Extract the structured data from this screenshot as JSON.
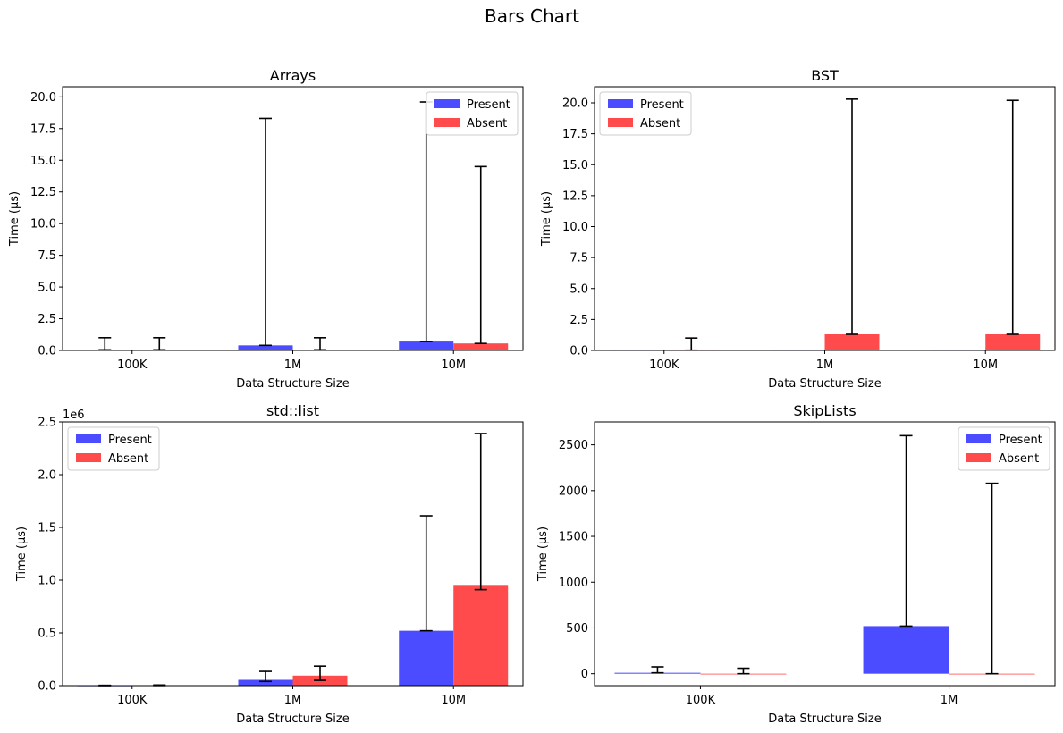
{
  "title": "Bars Chart",
  "colors": {
    "present": "#4b4bff",
    "absent": "#ff4b4b",
    "error": "#000000"
  },
  "chart_data": [
    {
      "type": "bar",
      "title": "Arrays",
      "xlabel": "Data Structure Size",
      "ylabel": "Time (µs)",
      "categories": [
        "100K",
        "1M",
        "10M"
      ],
      "ylim": [
        0,
        20.8
      ],
      "yticks": [
        "0.0",
        "2.5",
        "5.0",
        "7.5",
        "10.0",
        "12.5",
        "15.0",
        "17.5",
        "20.0"
      ],
      "ytick_values": [
        0,
        2.5,
        5,
        7.5,
        10,
        12.5,
        15,
        17.5,
        20
      ],
      "y_offset_label": "",
      "legend": "top-right",
      "series": [
        {
          "name": "Present",
          "values": [
            0.05,
            0.4,
            0.7
          ],
          "err_low": [
            0.05,
            0.4,
            0.7
          ],
          "err_high": [
            1.0,
            18.3,
            19.6
          ]
        },
        {
          "name": "Absent",
          "values": [
            0.05,
            0.05,
            0.55
          ],
          "err_low": [
            0.05,
            0.05,
            0.55
          ],
          "err_high": [
            1.0,
            1.0,
            14.5
          ]
        }
      ]
    },
    {
      "type": "bar",
      "title": "BST",
      "xlabel": "Data Structure Size",
      "ylabel": "Time (µs)",
      "categories": [
        "100K",
        "1M",
        "10M"
      ],
      "ylim": [
        0,
        21.3
      ],
      "yticks": [
        "0.0",
        "2.5",
        "5.0",
        "7.5",
        "10.0",
        "12.5",
        "15.0",
        "17.5",
        "20.0"
      ],
      "ytick_values": [
        0,
        2.5,
        5,
        7.5,
        10,
        12.5,
        15,
        17.5,
        20
      ],
      "y_offset_label": "",
      "legend": "top-left",
      "series": [
        {
          "name": "Present",
          "values": [
            0.02,
            0.02,
            0.02
          ],
          "err_low": null,
          "err_high": null
        },
        {
          "name": "Absent",
          "values": [
            0.02,
            1.3,
            1.3
          ],
          "err_low": [
            0.02,
            1.3,
            1.3
          ],
          "err_high": [
            1.0,
            20.3,
            20.2
          ]
        }
      ]
    },
    {
      "type": "bar",
      "title": "std::list",
      "xlabel": "Data Structure Size",
      "ylabel": "Time (µs)",
      "categories": [
        "100K",
        "1M",
        "10M"
      ],
      "ylim": [
        0,
        2500000
      ],
      "yticks": [
        "0.0",
        "0.5",
        "1.0",
        "1.5",
        "2.0",
        "2.5"
      ],
      "ytick_values": [
        0,
        500000,
        1000000,
        1500000,
        2000000,
        2500000
      ],
      "y_offset_label": "1e6",
      "legend": "top-left",
      "series": [
        {
          "name": "Present",
          "values": [
            1500,
            55000,
            520000
          ],
          "err_low": [
            0,
            40000,
            520000
          ],
          "err_high": [
            3000,
            135000,
            1610000
          ]
        },
        {
          "name": "Absent",
          "values": [
            4000,
            95000,
            955000
          ],
          "err_low": [
            1000,
            50000,
            910000
          ],
          "err_high": [
            6000,
            185000,
            2390000
          ]
        }
      ]
    },
    {
      "type": "bar",
      "title": "SkipLists",
      "xlabel": "Data Structure Size",
      "ylabel": "Time (µs)",
      "categories": [
        "100K",
        "1M"
      ],
      "ylim": [
        -130,
        2750
      ],
      "yticks": [
        "0",
        "500",
        "1000",
        "1500",
        "2000",
        "2500"
      ],
      "ytick_values": [
        0,
        500,
        1000,
        1500,
        2000,
        2500
      ],
      "y_offset_label": "",
      "legend": "top-right",
      "series": [
        {
          "name": "Present",
          "values": [
            10,
            520
          ],
          "err_low": [
            10,
            520
          ],
          "err_high": [
            75,
            2600
          ]
        },
        {
          "name": "Absent",
          "values": [
            0,
            0
          ],
          "err_low": [
            0,
            0
          ],
          "err_high": [
            60,
            2080
          ]
        }
      ]
    }
  ]
}
